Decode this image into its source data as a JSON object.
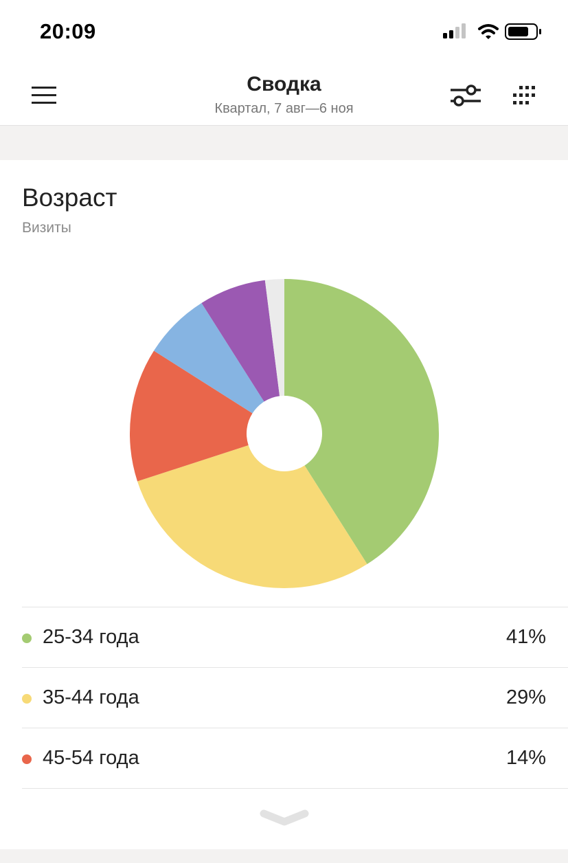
{
  "status_bar": {
    "time": "20:09"
  },
  "header": {
    "title": "Сводка",
    "subtitle": "Квартал, 7 авг—6 ноя",
    "icons": [
      "menu-icon",
      "filter-icon",
      "grid-icon"
    ]
  },
  "card": {
    "title": "Возраст",
    "subtitle": "Визиты"
  },
  "chart_data": {
    "type": "pie",
    "style": "donut",
    "categories": [
      "25-34 года",
      "35-44 года",
      "45-54 года",
      "",
      "",
      ""
    ],
    "values": [
      41,
      29,
      14,
      7,
      7,
      2
    ],
    "colors": [
      "#a4cb72",
      "#f7da77",
      "#e9664b",
      "#86b4e2",
      "#9b59b2",
      "#ebebeb"
    ]
  },
  "legend": [
    {
      "label": "25-34 года",
      "value": "41%",
      "color": "#a4cb72"
    },
    {
      "label": "35-44 года",
      "value": "29%",
      "color": "#f7da77"
    },
    {
      "label": "45-54 года",
      "value": "14%",
      "color": "#e9664b"
    }
  ],
  "colors": {
    "background": "#ffffff",
    "band": "#f3f2f1",
    "divider": "#e4e4e4",
    "text_primary": "#222222",
    "text_secondary": "#8a8a8a"
  }
}
